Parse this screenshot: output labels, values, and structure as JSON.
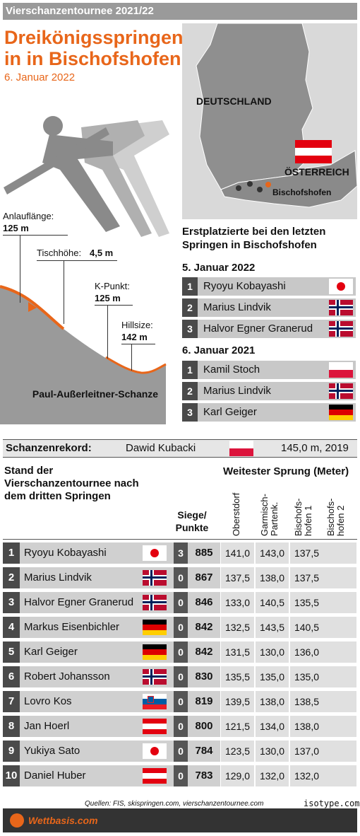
{
  "header": {
    "series": "Vierschanzentournee 2021/22",
    "title": "Dreikönigsspringen in in Bischofshofen",
    "date": "6. Januar 2022"
  },
  "hill": {
    "anlauf_label": "Anlauflänge:",
    "anlauf_value": "125 m",
    "tisch_label": "Tischhöhe:",
    "tisch_value": "4,5 m",
    "kpunkt_label": "K-Punkt:",
    "kpunkt_value": "125 m",
    "hillsize_label": "Hillsize:",
    "hillsize_value": "142 m",
    "name": "Paul-Außerleitner-Schanze"
  },
  "map": {
    "country_de": "DEUTSCHLAND",
    "country_at": "ÖSTERREICH",
    "city": "Bischofshofen"
  },
  "winners": {
    "title": "Erstplatzierte bei den letzten Springen in Bischofshofen",
    "sections": [
      {
        "date": "5. Januar 2022",
        "entries": [
          {
            "rank": "1",
            "name": "Ryoyu Kobayashi",
            "flag": "jp"
          },
          {
            "rank": "2",
            "name": "Marius Lindvik",
            "flag": "no"
          },
          {
            "rank": "3",
            "name": "Halvor Egner Granerud",
            "flag": "no"
          }
        ]
      },
      {
        "date": "6. Januar 2021",
        "entries": [
          {
            "rank": "1",
            "name": "Kamil Stoch",
            "flag": "pl"
          },
          {
            "rank": "2",
            "name": "Marius Lindvik",
            "flag": "no"
          },
          {
            "rank": "3",
            "name": "Karl Geiger",
            "flag": "de"
          }
        ]
      }
    ]
  },
  "record": {
    "label": "Schanzenrekord:",
    "holder": "Dawid Kubacki",
    "flag": "pl",
    "value": "145,0 m, 2019"
  },
  "standings": {
    "title": "Stand der Vierschanzentournee nach dem dritten Springen",
    "siege_label": "Siege/ Punkte",
    "jumps_label": "Weitester Sprung (Meter)",
    "columns": [
      "Oberstdorf",
      "Garmisch-Partenk.",
      "Bischofs-hofen 1",
      "Bischofs-hofen 2"
    ],
    "rows": [
      {
        "rank": "1",
        "name": "Ryoyu Kobayashi",
        "flag": "jp",
        "wins": "3",
        "points": "885",
        "s1": "141,0",
        "s2": "143,0",
        "s3": "137,5",
        "s4": ""
      },
      {
        "rank": "2",
        "name": "Marius Lindvik",
        "flag": "no",
        "wins": "0",
        "points": "867",
        "s1": "137,5",
        "s2": "138,0",
        "s3": "137,5",
        "s4": ""
      },
      {
        "rank": "3",
        "name": "Halvor Egner Granerud",
        "flag": "no",
        "wins": "0",
        "points": "846",
        "s1": "133,0",
        "s2": "140,5",
        "s3": "135,5",
        "s4": ""
      },
      {
        "rank": "4",
        "name": "Markus Eisenbichler",
        "flag": "de",
        "wins": "0",
        "points": "842",
        "s1": "132,5",
        "s2": "143,5",
        "s3": "140,5",
        "s4": ""
      },
      {
        "rank": "5",
        "name": "Karl Geiger",
        "flag": "de",
        "wins": "0",
        "points": "842",
        "s1": "131,5",
        "s2": "130,0",
        "s3": "136,0",
        "s4": ""
      },
      {
        "rank": "6",
        "name": "Robert Johansson",
        "flag": "no",
        "wins": "0",
        "points": "830",
        "s1": "135,5",
        "s2": "135,0",
        "s3": "135,0",
        "s4": ""
      },
      {
        "rank": "7",
        "name": "Lovro Kos",
        "flag": "si",
        "wins": "0",
        "points": "819",
        "s1": "139,5",
        "s2": "138,0",
        "s3": "138,5",
        "s4": ""
      },
      {
        "rank": "8",
        "name": "Jan Hoerl",
        "flag": "at",
        "wins": "0",
        "points": "800",
        "s1": "121,5",
        "s2": "134,0",
        "s3": "138,0",
        "s4": ""
      },
      {
        "rank": "9",
        "name": "Yukiya Sato",
        "flag": "jp",
        "wins": "0",
        "points": "784",
        "s1": "123,5",
        "s2": "130,0",
        "s3": "137,0",
        "s4": ""
      },
      {
        "rank": "10",
        "name": "Daniel Huber",
        "flag": "at",
        "wins": "0",
        "points": "783",
        "s1": "129,0",
        "s2": "132,0",
        "s3": "132,0",
        "s4": ""
      }
    ]
  },
  "footer": {
    "sources": "Quellen: FIS, skispringen.com, vierschanzentournee.com",
    "isotype": "isotype.com",
    "brand": "Wettbasis.com"
  }
}
